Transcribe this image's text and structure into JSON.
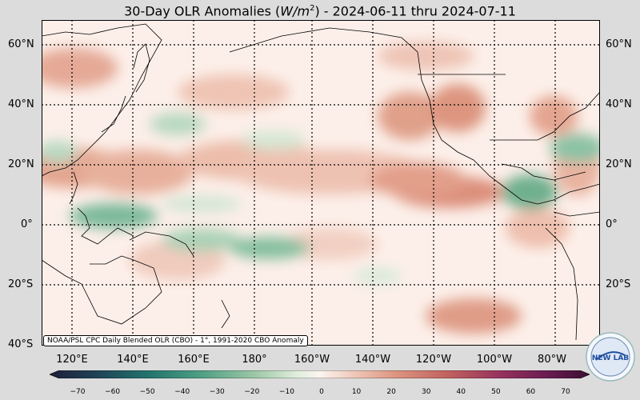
{
  "title": {
    "main": "30-Day OLR Anomalies (",
    "unit_base": "W/m",
    "unit_exp": "2",
    "range": ") - 2024-06-11 thru 2024-07-11"
  },
  "lat_labels": [
    "60°N",
    "40°N",
    "20°N",
    "0°",
    "20°S",
    "40°S"
  ],
  "lon_labels": [
    "120°E",
    "140°E",
    "160°E",
    "180°",
    "160°W",
    "140°W",
    "120°W",
    "100°W",
    "80°W"
  ],
  "credit": "NOAA/PSL CPC Daily Blended OLR (CBO) - 1°, 1991-2020 CBO Anomaly",
  "colorbar": {
    "ticks": [
      "−70",
      "−60",
      "−50",
      "−40",
      "−30",
      "−20",
      "−10",
      "0",
      "10",
      "20",
      "30",
      "40",
      "50",
      "60",
      "70"
    ],
    "min": -75,
    "max": 75,
    "colors": [
      "#2a1a3a",
      "#1f4a5a",
      "#2a7a74",
      "#5aa88a",
      "#a6cfae",
      "#e6f0e2",
      "#fbf2ee",
      "#e9b7a2",
      "#d37c6a",
      "#b34a5a",
      "#7a1f5a",
      "#4a0f3a"
    ]
  },
  "logo_text": "NEW LAB",
  "colors": {
    "ocean": "#fcefe9",
    "land_line": "#000000",
    "grid": "#000000",
    "background": "#dcdcdc"
  }
}
